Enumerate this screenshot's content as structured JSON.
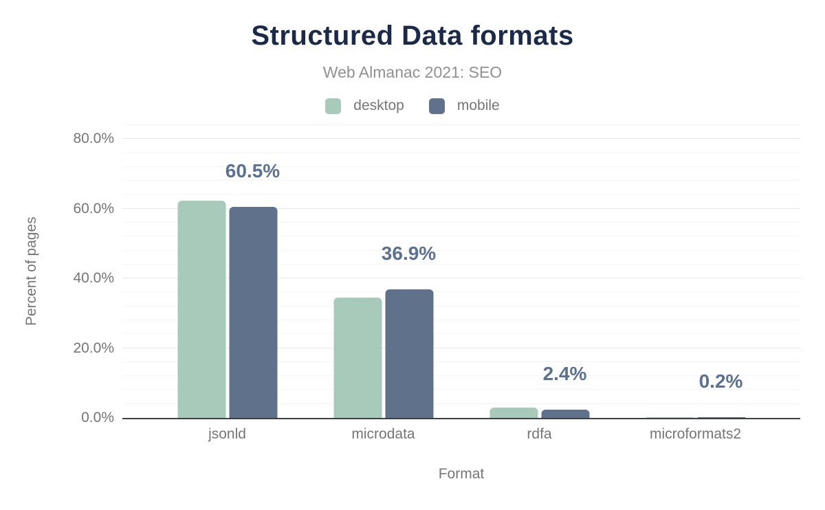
{
  "chart": {
    "title": "Structured Data formats",
    "subtitle": "Web Almanac 2021: SEO"
  },
  "chart_data": {
    "type": "bar",
    "title": "Structured Data formats",
    "subtitle": "Web Almanac 2021: SEO",
    "categories": [
      "jsonld",
      "microdata",
      "rdfa",
      "microformats2"
    ],
    "series": [
      {
        "name": "desktop",
        "color": "#a8cabb",
        "values": [
          62.3,
          34.6,
          2.9,
          0.2
        ]
      },
      {
        "name": "mobile",
        "color": "#60718c",
        "values": [
          60.5,
          36.9,
          2.4,
          0.2
        ]
      }
    ],
    "bar_labels": {
      "series": "mobile",
      "values": [
        "60.5%",
        "36.9%",
        "2.4%",
        "0.2%"
      ]
    },
    "xlabel": "Format",
    "ylabel": "Percent of pages",
    "ylim": [
      0,
      84
    ],
    "yticks": [
      {
        "value": 0,
        "label": "0.0%"
      },
      {
        "value": 20,
        "label": "20.0%"
      },
      {
        "value": 40,
        "label": "40.0%"
      },
      {
        "value": 60,
        "label": "60.0%"
      },
      {
        "value": 80,
        "label": "80.0%"
      }
    ],
    "minor_grid_step": 4,
    "grid": true,
    "legend_position": "top"
  },
  "colors": {
    "title": "#1b2a49",
    "subtitle": "#909090",
    "axis_text": "#757575",
    "value_label": "#5b7191",
    "axis_line": "#3c4043",
    "grid_major": "#e8e8e8",
    "grid_minor": "#f5f5f5"
  }
}
